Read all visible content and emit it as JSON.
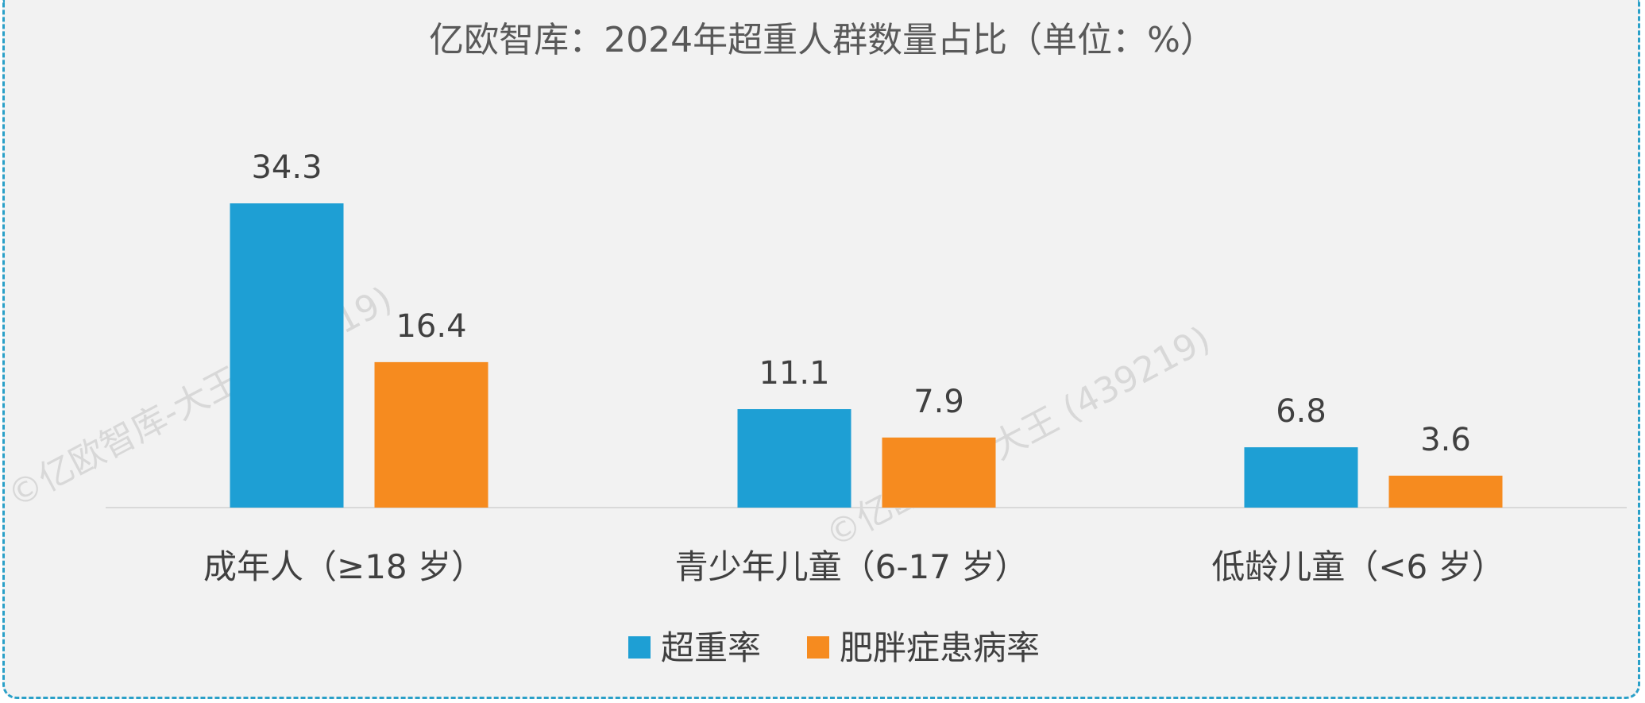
{
  "watermark": "©亿欧智库-大王 (439219)",
  "chart_data": {
    "type": "bar",
    "title": "亿欧智库：2024年超重人群数量占比（单位：%）",
    "xlabel": "",
    "ylabel": "",
    "ylim": [
      0,
      40
    ],
    "grid": false,
    "legend_position": "bottom",
    "categories": [
      "成年人（≥18 岁）",
      "青少年儿童（6-17 岁）",
      "低龄儿童（<6 岁）"
    ],
    "series": [
      {
        "name": "超重率",
        "color": "#1e9fd4",
        "values": [
          34.3,
          11.1,
          6.8
        ]
      },
      {
        "name": "肥胖症患病率",
        "color": "#f68b1f",
        "values": [
          16.4,
          7.9,
          3.6
        ]
      }
    ]
  }
}
